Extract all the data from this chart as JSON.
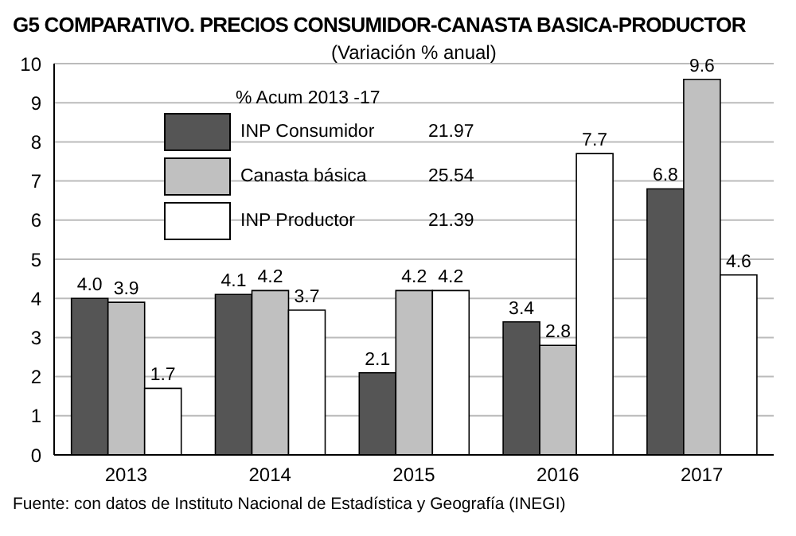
{
  "chart_data": {
    "type": "bar",
    "title": "G5  COMPARATIVO. PRECIOS CONSUMIDOR-CANASTA BASICA-PRODUCTOR",
    "subtitle": "(Variación % anual)",
    "legend_title": "% Acum  2013 -17",
    "categories": [
      "2013",
      "2014",
      "2015",
      "2016",
      "2017"
    ],
    "series": [
      {
        "name": "INP Consumidor",
        "color": "#555555",
        "values": [
          4.0,
          4.1,
          2.1,
          3.4,
          6.8
        ],
        "value_labels": [
          "4.0",
          "4.1",
          "2.1",
          "3.4",
          "6.8"
        ]
      },
      {
        "name": "Canasta básica",
        "color": "#c0c0c0",
        "values": [
          3.9,
          4.2,
          4.2,
          2.8,
          9.6
        ],
        "value_labels": [
          "3.9",
          "4.2",
          "4.2",
          "2.8",
          "9.6"
        ]
      },
      {
        "name": "INP Productor",
        "color": "#ffffff",
        "values": [
          1.7,
          3.7,
          4.2,
          7.7,
          4.6
        ],
        "value_labels": [
          "1.7",
          "3.7",
          "4.2",
          "7.7",
          "4.6"
        ]
      }
    ],
    "ylim": [
      0,
      10
    ],
    "yticks": [
      0,
      1,
      2,
      3,
      4,
      5,
      6,
      7,
      8,
      9,
      10
    ],
    "grid": "y",
    "legend": "top left",
    "annotations": [
      "21.97",
      "25.54",
      "21.39",
      "Fuente: con datos de Instituto Nacional de Estadística y Geografía (INEGI)"
    ]
  }
}
